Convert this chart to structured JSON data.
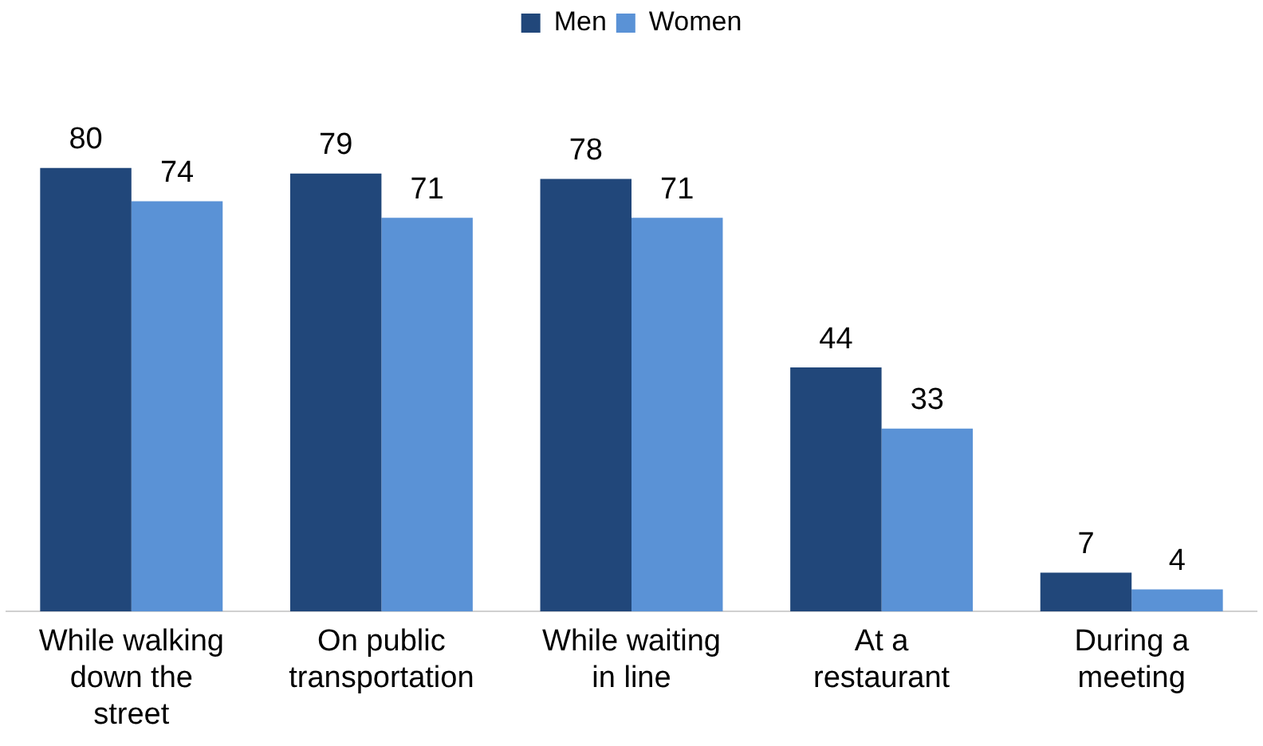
{
  "chart_data": {
    "type": "bar",
    "categories": [
      "While walking down the street",
      "On public transportation",
      "While waiting in line",
      "At a restaurant",
      "During a meeting"
    ],
    "series": [
      {
        "name": "Men",
        "color": "#21477a",
        "values": [
          80,
          79,
          78,
          44,
          7
        ]
      },
      {
        "name": "Women",
        "color": "#5a92d6",
        "values": [
          74,
          71,
          71,
          33,
          4
        ]
      }
    ],
    "data_labels": true,
    "legend": "top",
    "grid": false
  }
}
